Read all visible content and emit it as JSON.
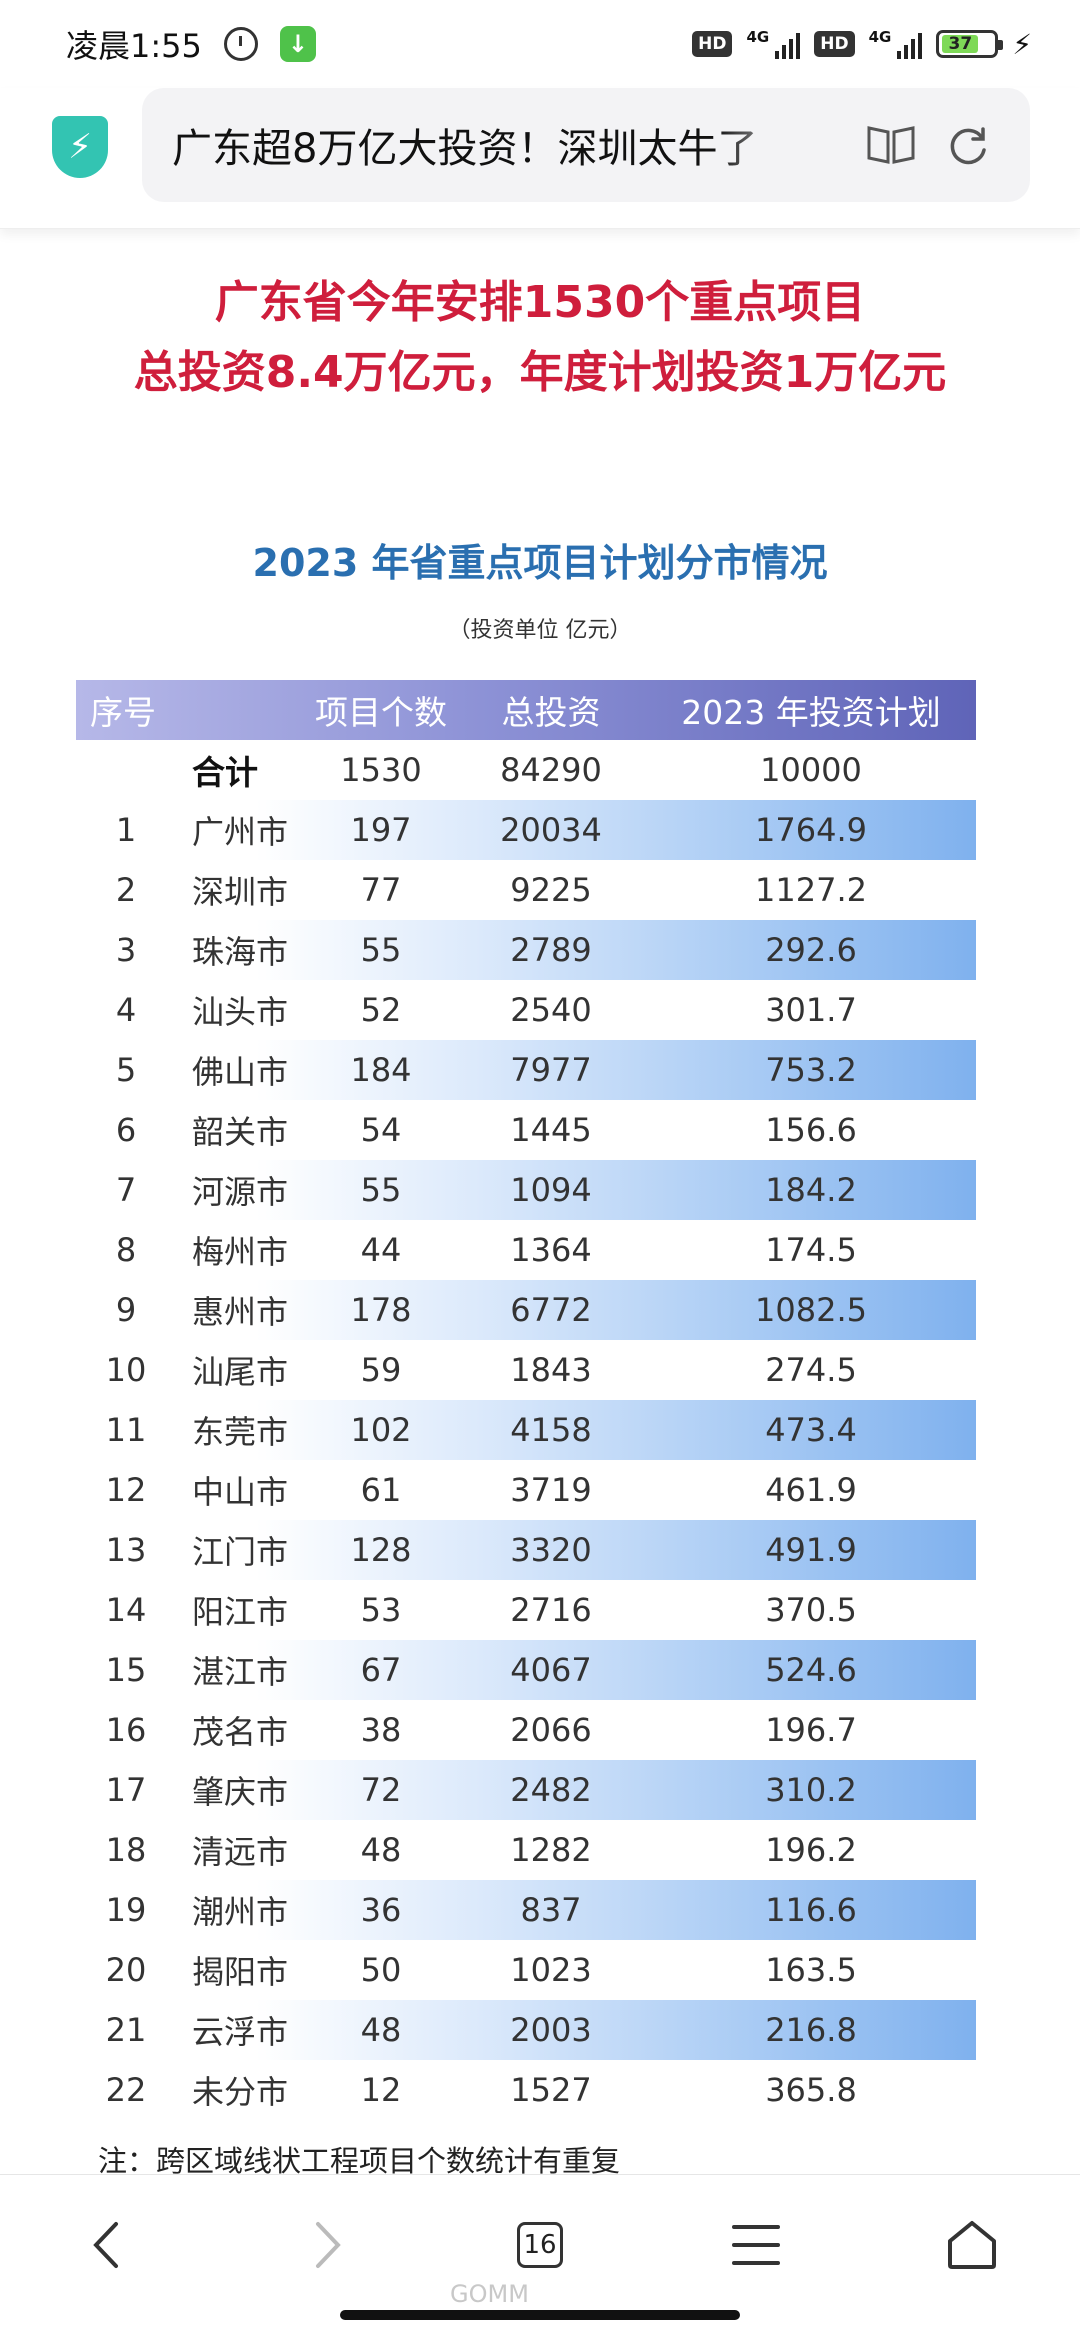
{
  "status_bar": {
    "time": "凌晨1:55",
    "network_1": "4G",
    "network_2": "4G",
    "hd_1": "HD",
    "hd_2": "HD",
    "battery": "37"
  },
  "browser": {
    "url_title": "广东超8万亿大投资！深圳太牛了",
    "tab_count": "16"
  },
  "article": {
    "headline_line1": "广东省今年安排1530个重点项目",
    "headline_line2": "总投资8.4万亿元，年度计划投资1万亿元",
    "chart_title": "2023 年省重点项目计划分市情况",
    "chart_unit": "（投资单位 亿元）",
    "footnote": "注：跨区域线状工程项目个数统计有重复"
  },
  "colors": {
    "headline": "#cf1e3c",
    "chart_title": "#2a6fb0",
    "header_band": "#5f64b8",
    "stripe": "#7fb1ee"
  },
  "chart_data": {
    "type": "table",
    "columns": [
      "序号",
      "项目个数",
      "总投资",
      "2023 年投资计划"
    ],
    "total": {
      "label": "合计",
      "projects": "1530",
      "investment": "84290",
      "plan_2023": "10000"
    },
    "rows": [
      {
        "no": "1",
        "city": "广州市",
        "projects": "197",
        "investment": "20034",
        "plan_2023": "1764.9"
      },
      {
        "no": "2",
        "city": "深圳市",
        "projects": "77",
        "investment": "9225",
        "plan_2023": "1127.2"
      },
      {
        "no": "3",
        "city": "珠海市",
        "projects": "55",
        "investment": "2789",
        "plan_2023": "292.6"
      },
      {
        "no": "4",
        "city": "汕头市",
        "projects": "52",
        "investment": "2540",
        "plan_2023": "301.7"
      },
      {
        "no": "5",
        "city": "佛山市",
        "projects": "184",
        "investment": "7977",
        "plan_2023": "753.2"
      },
      {
        "no": "6",
        "city": "韶关市",
        "projects": "54",
        "investment": "1445",
        "plan_2023": "156.6"
      },
      {
        "no": "7",
        "city": "河源市",
        "projects": "55",
        "investment": "1094",
        "plan_2023": "184.2"
      },
      {
        "no": "8",
        "city": "梅州市",
        "projects": "44",
        "investment": "1364",
        "plan_2023": "174.5"
      },
      {
        "no": "9",
        "city": "惠州市",
        "projects": "178",
        "investment": "6772",
        "plan_2023": "1082.5"
      },
      {
        "no": "10",
        "city": "汕尾市",
        "projects": "59",
        "investment": "1843",
        "plan_2023": "274.5"
      },
      {
        "no": "11",
        "city": "东莞市",
        "projects": "102",
        "investment": "4158",
        "plan_2023": "473.4"
      },
      {
        "no": "12",
        "city": "中山市",
        "projects": "61",
        "investment": "3719",
        "plan_2023": "461.9"
      },
      {
        "no": "13",
        "city": "江门市",
        "projects": "128",
        "investment": "3320",
        "plan_2023": "491.9"
      },
      {
        "no": "14",
        "city": "阳江市",
        "projects": "53",
        "investment": "2716",
        "plan_2023": "370.5"
      },
      {
        "no": "15",
        "city": "湛江市",
        "projects": "67",
        "investment": "4067",
        "plan_2023": "524.6"
      },
      {
        "no": "16",
        "city": "茂名市",
        "projects": "38",
        "investment": "2066",
        "plan_2023": "196.7"
      },
      {
        "no": "17",
        "city": "肇庆市",
        "projects": "72",
        "investment": "2482",
        "plan_2023": "310.2"
      },
      {
        "no": "18",
        "city": "清远市",
        "projects": "48",
        "investment": "1282",
        "plan_2023": "196.2"
      },
      {
        "no": "19",
        "city": "潮州市",
        "projects": "36",
        "investment": "837",
        "plan_2023": "116.6"
      },
      {
        "no": "20",
        "city": "揭阳市",
        "projects": "50",
        "investment": "1023",
        "plan_2023": "163.5"
      },
      {
        "no": "21",
        "city": "云浮市",
        "projects": "48",
        "investment": "2003",
        "plan_2023": "216.8"
      },
      {
        "no": "22",
        "city": "未分市",
        "projects": "12",
        "investment": "1527",
        "plan_2023": "365.8"
      }
    ]
  },
  "watermark": "GOMM"
}
